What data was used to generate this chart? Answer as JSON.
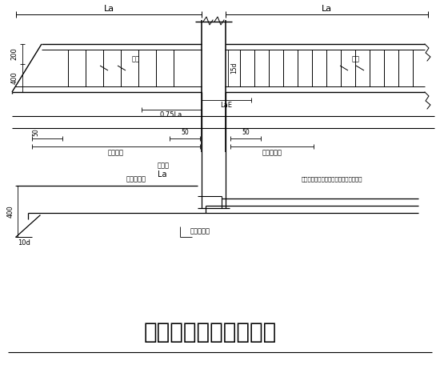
{
  "title": "框架梁悬挑端纵筋示意",
  "bg_color": "#ffffff",
  "line_color": "#000000",
  "fig_width": 5.6,
  "fig_height": 4.76,
  "dpi": 100,
  "labels": {
    "La": "La",
    "guojin_left": "箍筋",
    "guojin_right": "箍筋",
    "d15": "15d",
    "LaE": "LaE",
    "L075": "0.75La",
    "s50a": "50",
    "s50b": "50",
    "s50c": "50",
    "guofan": "箍筋范围",
    "guomi": "箍筋加密区",
    "jiliang": "基督梁",
    "La2": "La",
    "row1": "第一排钢筋",
    "row2": "第二排钢筋",
    "note": "不少于第一排钢筋一半且不少于两根角筋",
    "dim200": "200",
    "dim400a": "400",
    "dim400b": "400",
    "dim10d": "10d"
  }
}
